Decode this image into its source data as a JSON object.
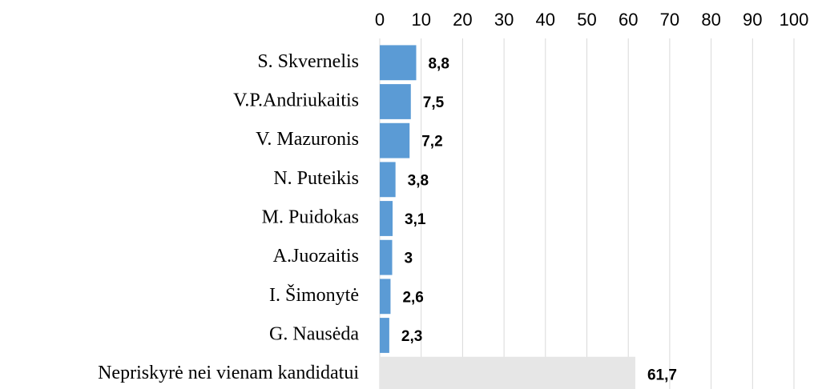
{
  "chart_data": {
    "type": "barh",
    "categories": [
      "S. Skvernelis",
      "V.P.Andriukaitis",
      "V. Mazuronis",
      "N. Puteikis",
      "M. Puidokas",
      "A.Juozaitis",
      "I. Šimonytė",
      "G. Nausėda",
      "Nepriskyrė nei vienam kandidatui"
    ],
    "values": [
      8.8,
      7.5,
      7.2,
      3.8,
      3.1,
      3,
      2.6,
      2.3,
      61.7
    ],
    "value_labels": [
      "8,8",
      "7,5",
      "7,2",
      "3,8",
      "3,1",
      "3",
      "2,6",
      "2,3",
      "61,7"
    ],
    "colors": [
      "#5b9bd5",
      "#5b9bd5",
      "#5b9bd5",
      "#5b9bd5",
      "#5b9bd5",
      "#5b9bd5",
      "#5b9bd5",
      "#5b9bd5",
      "#e6e6e6"
    ],
    "xlim": [
      0,
      100
    ],
    "xticks": [
      0,
      10,
      20,
      30,
      40,
      50,
      60,
      70,
      80,
      90,
      100
    ],
    "grid": true
  }
}
